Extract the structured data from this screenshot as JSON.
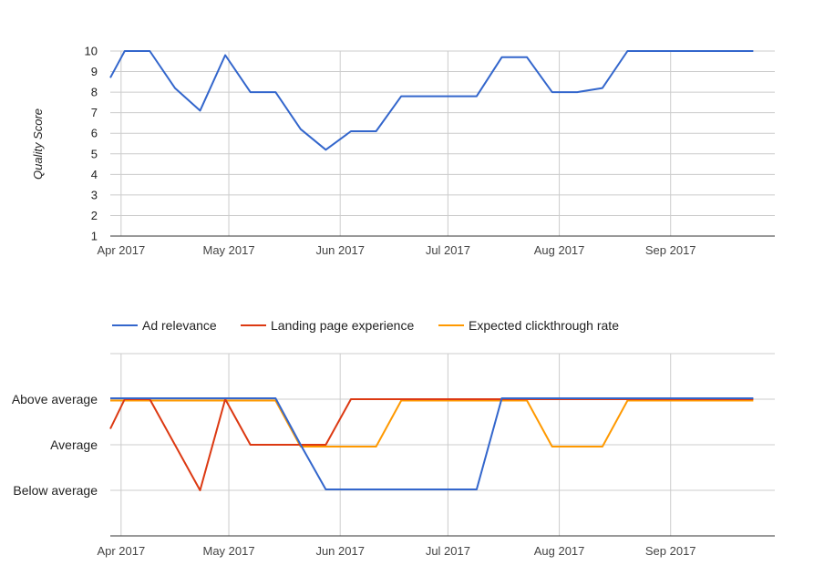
{
  "chart_data": [
    {
      "type": "line",
      "ylabel": "Quality Score",
      "ylim": [
        1,
        10
      ],
      "yticks": [
        1,
        2,
        3,
        4,
        5,
        6,
        7,
        8,
        9,
        10
      ],
      "x_ticks": [
        "Apr 2017",
        "May 2017",
        "Jun 2017",
        "Jul 2017",
        "Aug 2017",
        "Sep 2017"
      ],
      "x_tick_dates": [
        "2017-04-01",
        "2017-05-01",
        "2017-06-01",
        "2017-07-01",
        "2017-08-01",
        "2017-09-01"
      ],
      "xlim": [
        "2017-03-29",
        "2017-09-30"
      ],
      "grid": true,
      "series": [
        {
          "color": "#3366cc",
          "points": [
            {
              "x": "2017-03-29",
              "y": 8.7
            },
            {
              "x": "2017-04-02",
              "y": 10
            },
            {
              "x": "2017-04-09",
              "y": 10
            },
            {
              "x": "2017-04-16",
              "y": 8.2
            },
            {
              "x": "2017-04-23",
              "y": 7.1
            },
            {
              "x": "2017-04-30",
              "y": 9.8
            },
            {
              "x": "2017-05-07",
              "y": 8
            },
            {
              "x": "2017-05-14",
              "y": 8
            },
            {
              "x": "2017-05-21",
              "y": 6.2
            },
            {
              "x": "2017-05-28",
              "y": 5.2
            },
            {
              "x": "2017-06-04",
              "y": 6.1
            },
            {
              "x": "2017-06-11",
              "y": 6.1
            },
            {
              "x": "2017-06-18",
              "y": 7.8
            },
            {
              "x": "2017-06-25",
              "y": 7.8
            },
            {
              "x": "2017-07-02",
              "y": 7.8
            },
            {
              "x": "2017-07-09",
              "y": 7.8
            },
            {
              "x": "2017-07-16",
              "y": 9.7
            },
            {
              "x": "2017-07-23",
              "y": 9.7
            },
            {
              "x": "2017-07-30",
              "y": 8
            },
            {
              "x": "2017-08-06",
              "y": 8
            },
            {
              "x": "2017-08-13",
              "y": 8.2
            },
            {
              "x": "2017-08-20",
              "y": 10
            },
            {
              "x": "2017-08-27",
              "y": 10
            },
            {
              "x": "2017-09-03",
              "y": 10
            },
            {
              "x": "2017-09-10",
              "y": 10
            },
            {
              "x": "2017-09-17",
              "y": 10
            },
            {
              "x": "2017-09-24",
              "y": 10
            }
          ]
        }
      ]
    },
    {
      "type": "line",
      "ycategories": [
        "Below average",
        "Average",
        "Above average"
      ],
      "ylim": [
        0,
        4
      ],
      "x_ticks": [
        "Apr 2017",
        "May 2017",
        "Jun 2017",
        "Jul 2017",
        "Aug 2017",
        "Sep 2017"
      ],
      "x_tick_dates": [
        "2017-04-01",
        "2017-05-01",
        "2017-06-01",
        "2017-07-01",
        "2017-08-01",
        "2017-09-01"
      ],
      "xlim": [
        "2017-03-29",
        "2017-09-30"
      ],
      "legend_position": "top",
      "grid": true,
      "series": [
        {
          "name": "Ad relevance",
          "color": "#3366cc",
          "points": [
            {
              "x": "2017-03-29",
              "y": 3.02
            },
            {
              "x": "2017-05-14",
              "y": 3.02
            },
            {
              "x": "2017-05-21",
              "y": 2.0
            },
            {
              "x": "2017-05-28",
              "y": 1.02
            },
            {
              "x": "2017-07-09",
              "y": 1.02
            },
            {
              "x": "2017-07-16",
              "y": 3.02
            },
            {
              "x": "2017-09-24",
              "y": 3.02
            }
          ]
        },
        {
          "name": "Landing page experience",
          "color": "#dc3912",
          "points": [
            {
              "x": "2017-03-29",
              "y": 2.35
            },
            {
              "x": "2017-04-02",
              "y": 3.0
            },
            {
              "x": "2017-04-09",
              "y": 3.0
            },
            {
              "x": "2017-04-23",
              "y": 1.0
            },
            {
              "x": "2017-04-30",
              "y": 3.0
            },
            {
              "x": "2017-05-07",
              "y": 2.0
            },
            {
              "x": "2017-05-28",
              "y": 2.0
            },
            {
              "x": "2017-06-04",
              "y": 3.0
            },
            {
              "x": "2017-09-24",
              "y": 3.0
            }
          ]
        },
        {
          "name": "Expected clickthrough rate",
          "color": "#ff9900",
          "points": [
            {
              "x": "2017-03-29",
              "y": 2.97
            },
            {
              "x": "2017-05-14",
              "y": 2.97
            },
            {
              "x": "2017-05-21",
              "y": 1.96
            },
            {
              "x": "2017-06-11",
              "y": 1.96
            },
            {
              "x": "2017-06-18",
              "y": 2.97
            },
            {
              "x": "2017-07-23",
              "y": 2.97
            },
            {
              "x": "2017-07-30",
              "y": 1.96
            },
            {
              "x": "2017-08-13",
              "y": 1.96
            },
            {
              "x": "2017-08-20",
              "y": 2.97
            },
            {
              "x": "2017-09-24",
              "y": 2.97
            }
          ]
        }
      ]
    }
  ]
}
